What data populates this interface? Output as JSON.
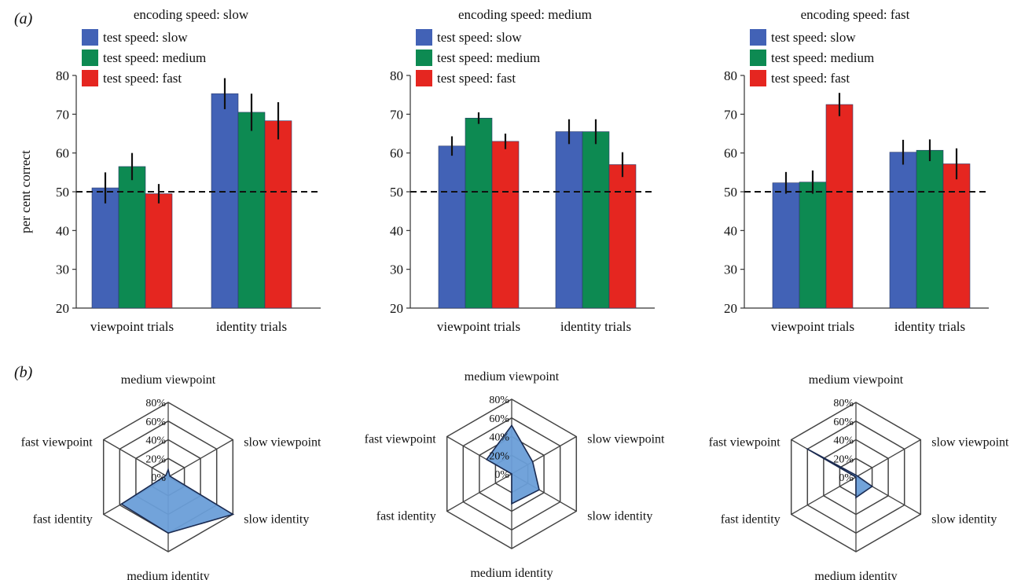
{
  "panel_labels": [
    "(a)",
    "(b)"
  ],
  "chart_data": [
    {
      "type": "bar",
      "title": "encoding speed: slow",
      "categories": [
        "viewpoint trials",
        "identity trials"
      ],
      "ylabel": "per cent correct",
      "ylim": [
        20,
        80
      ],
      "yticks": [
        20,
        30,
        40,
        50,
        60,
        70,
        80
      ],
      "reference_line": 50,
      "legend_placement": "top-left",
      "series": [
        {
          "name": "test speed: slow",
          "color": "#4262b6",
          "values": [
            51,
            75.3
          ],
          "errors": [
            4,
            4
          ]
        },
        {
          "name": "test speed: medium",
          "color": "#0d8a52",
          "values": [
            56.5,
            70.5
          ],
          "errors": [
            3.5,
            4.8
          ]
        },
        {
          "name": "test speed: fast",
          "color": "#e52620",
          "values": [
            49.5,
            68.3
          ],
          "errors": [
            2.5,
            4.8
          ]
        }
      ]
    },
    {
      "type": "bar",
      "title": "encoding speed: medium",
      "categories": [
        "viewpoint trials",
        "identity trials"
      ],
      "ylim": [
        20,
        80
      ],
      "yticks": [
        20,
        30,
        40,
        50,
        60,
        70,
        80
      ],
      "reference_line": 50,
      "legend_placement": "top-left",
      "series": [
        {
          "name": "test speed: slow",
          "color": "#4262b6",
          "values": [
            61.8,
            65.5
          ],
          "errors": [
            2.5,
            3.2
          ]
        },
        {
          "name": "test speed: medium",
          "color": "#0d8a52",
          "values": [
            69,
            65.5
          ],
          "errors": [
            1.5,
            3.2
          ]
        },
        {
          "name": "test speed: fast",
          "color": "#e52620",
          "values": [
            63,
            57
          ],
          "errors": [
            2,
            3.2
          ]
        }
      ]
    },
    {
      "type": "bar",
      "title": "encoding speed: fast",
      "categories": [
        "viewpoint trials",
        "identity trials"
      ],
      "ylim": [
        20,
        80
      ],
      "yticks": [
        20,
        30,
        40,
        50,
        60,
        70,
        80
      ],
      "reference_line": 50,
      "legend_placement": "top-left",
      "series": [
        {
          "name": "test speed: slow",
          "color": "#4262b6",
          "values": [
            52.3,
            60.2
          ],
          "errors": [
            2.8,
            3.2
          ]
        },
        {
          "name": "test speed: medium",
          "color": "#0d8a52",
          "values": [
            52.5,
            60.7
          ],
          "errors": [
            3,
            2.8
          ]
        },
        {
          "name": "test speed: fast",
          "color": "#e52620",
          "values": [
            72.5,
            57.2
          ],
          "errors": [
            3,
            4
          ]
        }
      ]
    },
    {
      "type": "radar",
      "axes": [
        "medium viewpoint",
        "slow viewpoint",
        "slow identity",
        "medium identity",
        "fast identity",
        "fast viewpoint"
      ],
      "rticks": [
        "0%",
        "20%",
        "40%",
        "60%",
        "80%"
      ],
      "rmax": 80,
      "fill": "#6a9ed8",
      "values": [
        8,
        2,
        80,
        60,
        58,
        3
      ]
    },
    {
      "type": "radar",
      "axes": [
        "medium viewpoint",
        "slow viewpoint",
        "slow identity",
        "medium identity",
        "fast identity",
        "fast viewpoint"
      ],
      "rticks": [
        "0%",
        "20%",
        "40%",
        "60%",
        "80%"
      ],
      "rmax": 80,
      "fill": "#6a9ed8",
      "values": [
        52,
        26,
        34,
        32,
        0,
        31
      ]
    },
    {
      "type": "radar",
      "axes": [
        "medium viewpoint",
        "slow viewpoint",
        "slow identity",
        "medium identity",
        "fast identity",
        "fast viewpoint"
      ],
      "rticks": [
        "0%",
        "20%",
        "40%",
        "60%",
        "80%"
      ],
      "rmax": 80,
      "fill": "#6a9ed8",
      "values": [
        2,
        2,
        20,
        22,
        0,
        61
      ]
    }
  ]
}
